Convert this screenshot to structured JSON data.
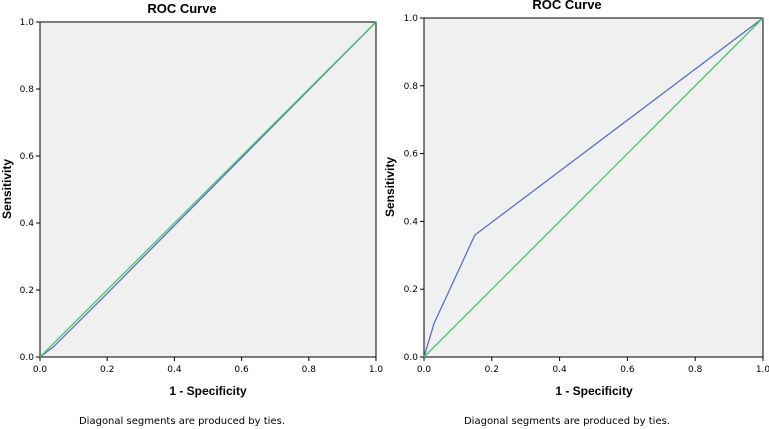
{
  "chart_data": [
    {
      "type": "line",
      "title": "ROC Curve",
      "xlabel": "1 - Specificity",
      "ylabel": "Sensitivity",
      "xlim": [
        0,
        1
      ],
      "ylim": [
        0,
        1
      ],
      "xticks": [
        "0.0",
        "0.2",
        "0.4",
        "0.6",
        "0.8",
        "1.0"
      ],
      "yticks": [
        "0.0",
        "0.2",
        "0.4",
        "0.6",
        "0.8",
        "1.0"
      ],
      "footnote": "Diagonal segments are produced by ties.",
      "series": [
        {
          "color": "#5b6fc4",
          "x": [
            0.0,
            0.04,
            0.2,
            1.0
          ],
          "y": [
            0.0,
            0.03,
            0.19,
            1.0
          ]
        },
        {
          "color": "#45c46a",
          "x": [
            0.0,
            1.0
          ],
          "y": [
            0.0,
            1.0
          ]
        }
      ]
    },
    {
      "type": "line",
      "title": "ROC Curve",
      "xlabel": "1 - Specificity",
      "ylabel": "Sensitivity",
      "xlim": [
        0,
        1
      ],
      "ylim": [
        0,
        1
      ],
      "xticks": [
        "0.0",
        "0.2",
        "0.4",
        "0.6",
        "0.8",
        "1.0"
      ],
      "yticks": [
        "0.0",
        "0.2",
        "0.4",
        "0.6",
        "0.8",
        "1.0"
      ],
      "footnote": "Diagonal segments are produced by ties.",
      "series": [
        {
          "color": "#5b6fc4",
          "x": [
            0.0,
            0.03,
            0.15,
            1.0
          ],
          "y": [
            0.0,
            0.1,
            0.36,
            1.0
          ]
        },
        {
          "color": "#45c46a",
          "x": [
            0.0,
            1.0
          ],
          "y": [
            0.0,
            1.0
          ]
        }
      ]
    }
  ]
}
